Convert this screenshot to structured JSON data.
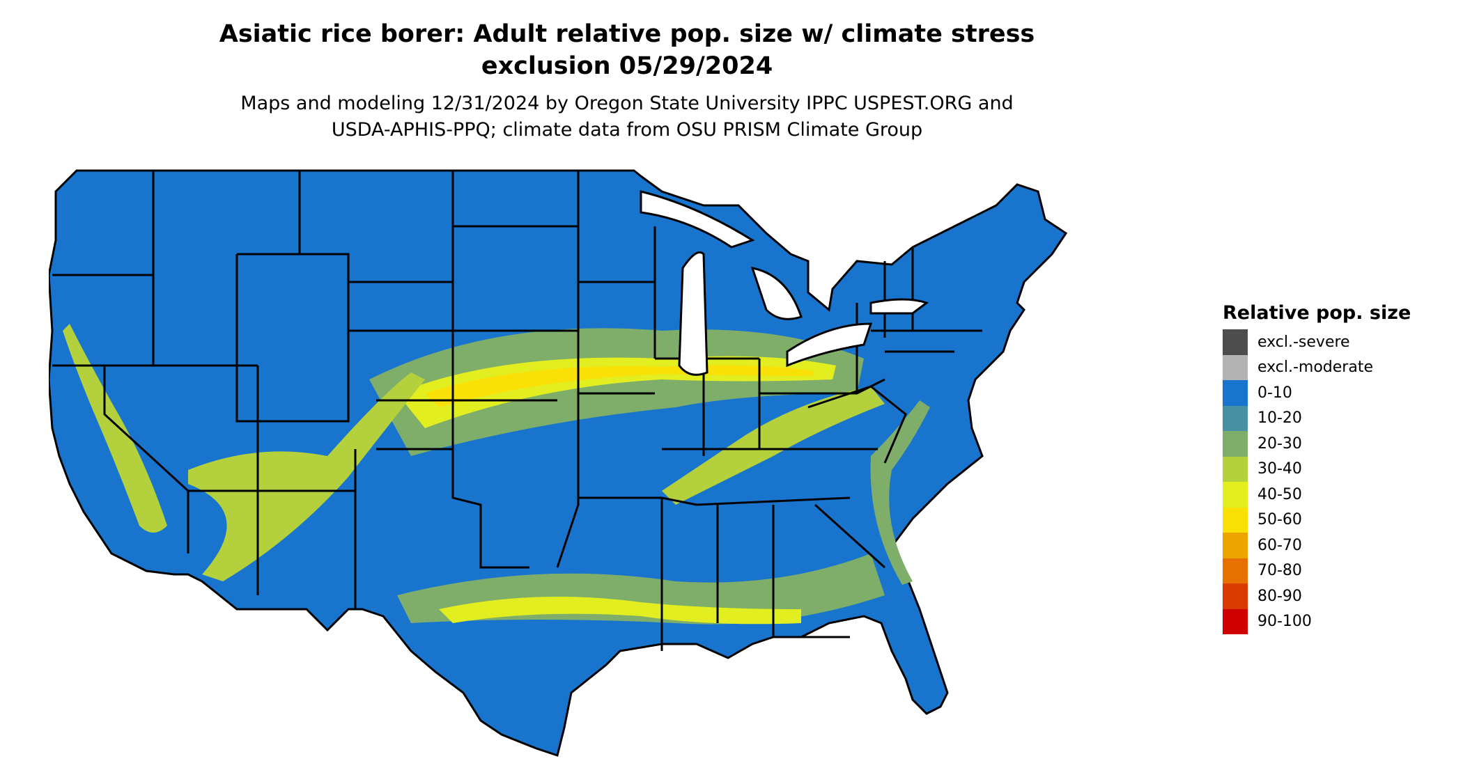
{
  "title_line1": "Asiatic rice borer: Adult relative pop. size w/ climate stress",
  "title_line2": "exclusion 05/29/2024",
  "subtitle_line1": "Maps and modeling 12/31/2024 by Oregon State University IPPC USPEST.ORG and",
  "subtitle_line2": "USDA-APHIS-PPQ; climate data from OSU PRISM Climate Group",
  "legend": {
    "title": "Relative pop. size",
    "items": [
      {
        "label": "excl.-severe",
        "color": "#4d4d4d"
      },
      {
        "label": "excl.-moderate",
        "color": "#b3b3b3"
      },
      {
        "label": "0-10",
        "color": "#1874cd"
      },
      {
        "label": "10-20",
        "color": "#4a90a4"
      },
      {
        "label": "20-30",
        "color": "#7fae6a"
      },
      {
        "label": "30-40",
        "color": "#b4d13d"
      },
      {
        "label": "40-50",
        "color": "#e2ee1f"
      },
      {
        "label": "50-60",
        "color": "#f9e107"
      },
      {
        "label": "60-70",
        "color": "#eea400"
      },
      {
        "label": "70-80",
        "color": "#e67000"
      },
      {
        "label": "80-90",
        "color": "#d93c00"
      },
      {
        "label": "90-100",
        "color": "#cf0000"
      }
    ]
  },
  "map_colors": {
    "base": "#1874cd",
    "band_10_20": "#4a90a4",
    "band_20_30": "#7fae6a",
    "band_30_40": "#b4d13d",
    "band_40_50": "#e2ee1f",
    "band_50_60": "#f9e107"
  }
}
